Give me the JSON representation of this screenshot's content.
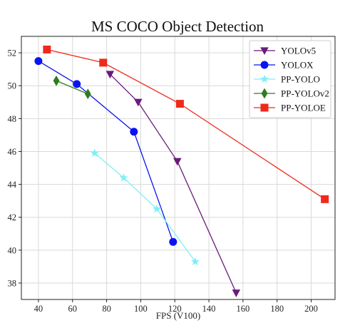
{
  "chart_data": {
    "type": "line",
    "title": "MS COCO Object Detection",
    "xlabel": "FPS (V100)",
    "ylabel": "",
    "xlim": [
      30,
      214
    ],
    "ylim": [
      37,
      53
    ],
    "xticks": [
      40,
      60,
      80,
      100,
      120,
      140,
      160,
      180,
      200
    ],
    "yticks": [
      38,
      40,
      42,
      44,
      46,
      48,
      50,
      52
    ],
    "grid": true,
    "legend_position": "top-right",
    "series": [
      {
        "name": "YOLOv5",
        "color": "#6a1b7a",
        "marker": "triangle-down",
        "x": [
          82,
          98.5,
          121.5,
          156
        ],
        "y": [
          50.7,
          49.0,
          45.4,
          37.4
        ]
      },
      {
        "name": "YOLOX",
        "color": "#0a14f0",
        "marker": "circle",
        "x": [
          40,
          62.5,
          96,
          119
        ],
        "y": [
          51.5,
          50.1,
          47.2,
          40.5
        ]
      },
      {
        "name": "PP-YOLO",
        "color": "#7ff0f5",
        "marker": "star",
        "x": [
          73,
          90,
          109.5,
          132
        ],
        "y": [
          45.9,
          44.4,
          42.5,
          39.3
        ]
      },
      {
        "name": "PP-YOLOv2",
        "color": "#2e7d1e",
        "marker": "diamond",
        "x": [
          50.5,
          69
        ],
        "y": [
          50.3,
          49.5
        ]
      },
      {
        "name": "PP-YOLOE",
        "color": "#ee2a1c",
        "marker": "square",
        "x": [
          45,
          78,
          123,
          208
        ],
        "y": [
          52.2,
          51.4,
          48.9,
          43.1
        ]
      }
    ]
  }
}
